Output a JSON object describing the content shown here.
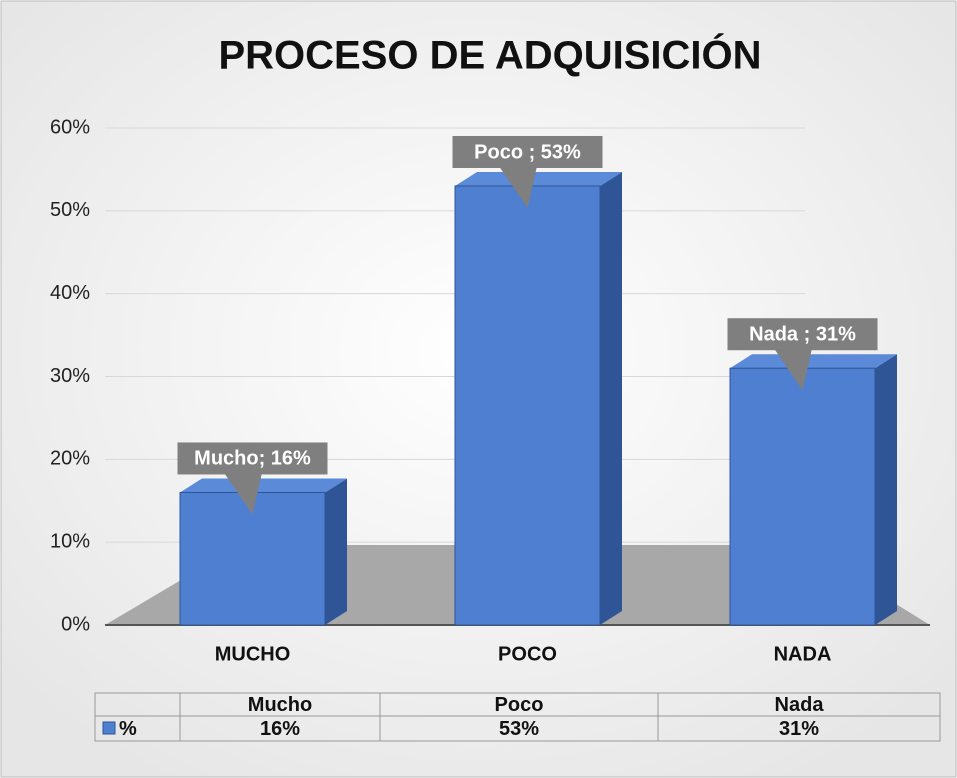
{
  "chart_data": {
    "type": "bar",
    "title": "PROCESO DE ADQUISICIÓN",
    "categories": [
      "MUCHO",
      "POCO",
      "NADA"
    ],
    "series": [
      {
        "name": "%",
        "color": "#4f7fd0",
        "values": [
          16,
          53,
          31
        ],
        "value_labels": [
          "Mucho; 16%",
          "Poco ; 53%",
          "Nada ; 31%"
        ]
      }
    ],
    "ylim": [
      0,
      60
    ],
    "yticks": [
      {
        "value": 0,
        "label": "0%"
      },
      {
        "value": 10,
        "label": "10%"
      },
      {
        "value": 20,
        "label": "20%"
      },
      {
        "value": 30,
        "label": "30%"
      },
      {
        "value": 40,
        "label": "40%"
      },
      {
        "value": 50,
        "label": "50%"
      },
      {
        "value": 60,
        "label": "60%"
      }
    ],
    "grid": true,
    "data_table": {
      "headers": [
        "Mucho",
        "Poco",
        "Nada"
      ],
      "cells": [
        "16%",
        "53%",
        "31%"
      ]
    }
  }
}
